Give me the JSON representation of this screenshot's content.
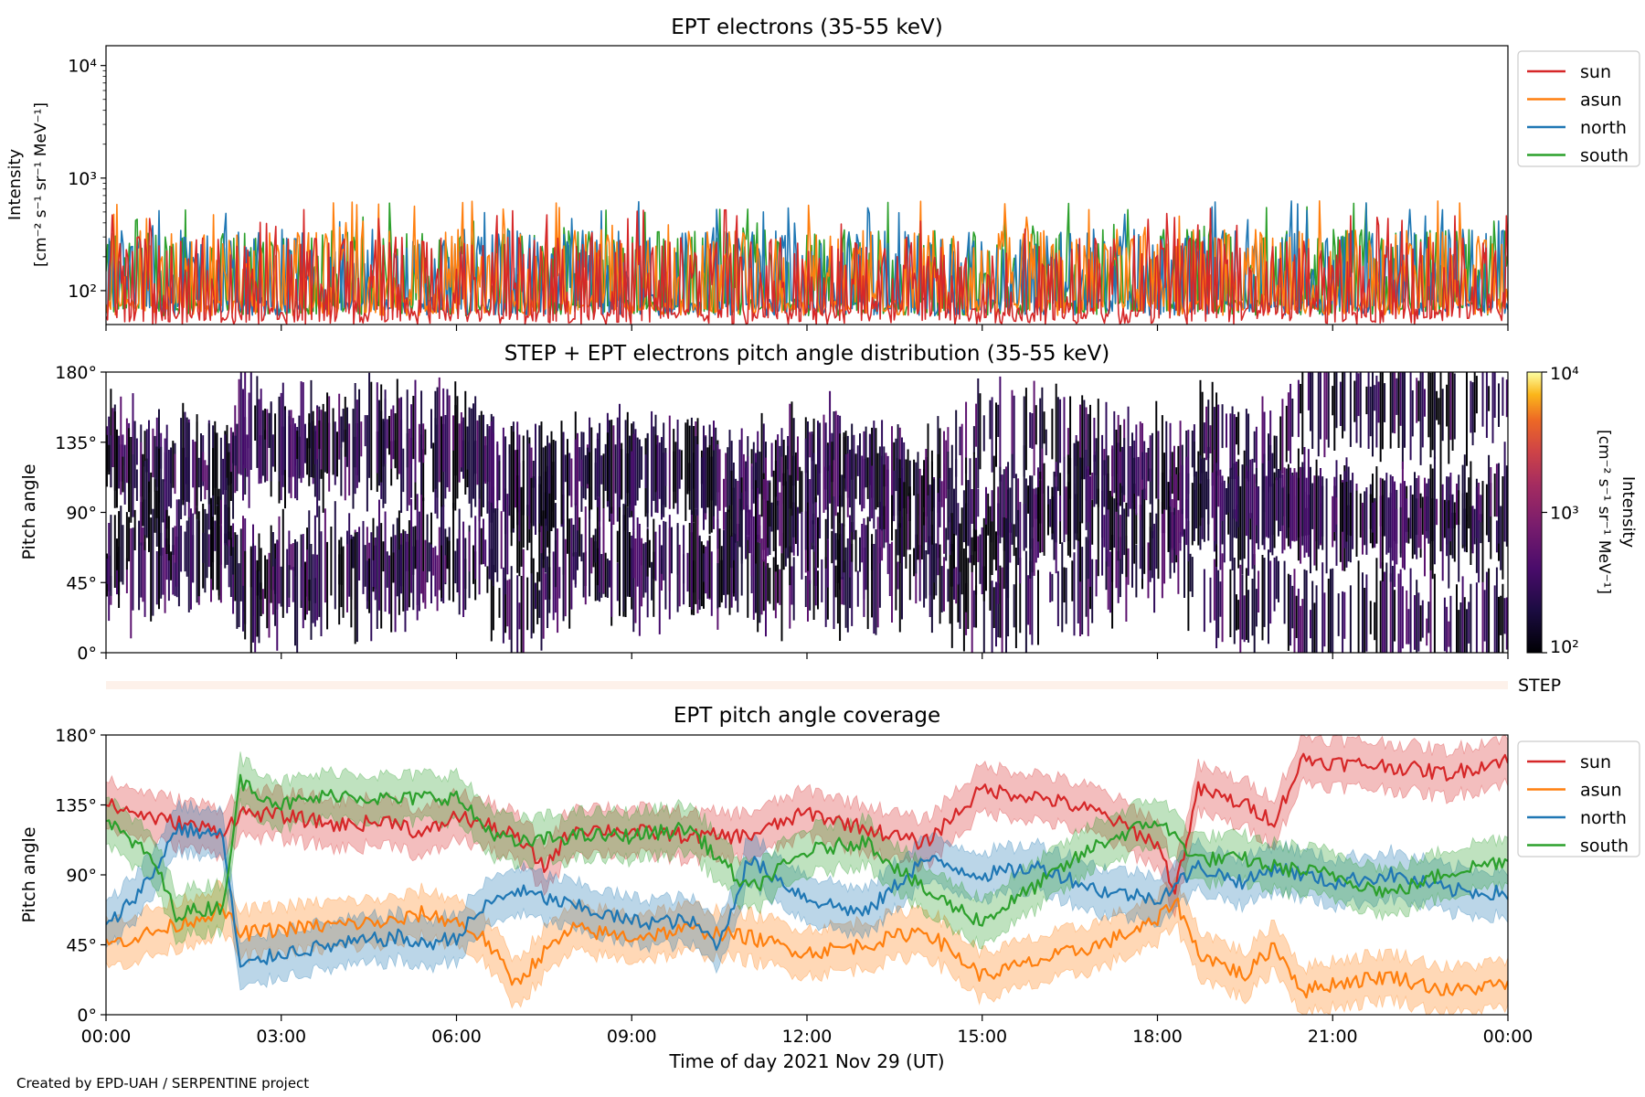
{
  "footer": {
    "credit": "Created by EPD-UAH / SERPENTINE project"
  },
  "x_axis": {
    "label": "Time of day 2021 Nov 29 (UT)",
    "ticks": [
      "00:00",
      "03:00",
      "06:00",
      "09:00",
      "12:00",
      "15:00",
      "18:00",
      "21:00",
      "00:00"
    ]
  },
  "colors": {
    "sun": "#d62728",
    "asun": "#ff7f0e",
    "north": "#1f77b4",
    "south": "#2ca02c",
    "step_band": "#fdf1ea"
  },
  "chart_data": [
    {
      "type": "line",
      "title": "EPT electrons (35-55 keV)",
      "ylabel": "Intensity",
      "yunit": "[cm⁻² s⁻¹ sr⁻¹ MeV⁻¹]",
      "yscale": "log",
      "ylim": [
        50,
        15000
      ],
      "yticks": [
        "10²",
        "10³",
        "10⁴"
      ],
      "xlim_hours": [
        0,
        24
      ],
      "legend": "outside-right",
      "series": [
        {
          "name": "sun",
          "typical_range": [
            50,
            300
          ],
          "peaks": [
            300
          ]
        },
        {
          "name": "asun",
          "typical_range": [
            60,
            350
          ],
          "peaks": [
            780
          ]
        },
        {
          "name": "north",
          "typical_range": [
            60,
            350
          ],
          "peaks": [
            600
          ]
        },
        {
          "name": "south",
          "typical_range": [
            60,
            350
          ],
          "peaks": [
            650
          ]
        }
      ]
    },
    {
      "type": "heatmap",
      "title": "STEP + EPT electrons pitch angle distribution (35-55 keV)",
      "ylabel": "Pitch angle",
      "ylim": [
        0,
        180
      ],
      "yticks": [
        "0°",
        "45°",
        "90°",
        "135°",
        "180°"
      ],
      "xlim_hours": [
        0,
        24
      ],
      "colorbar": {
        "label": "Intensity",
        "unit": "[cm⁻² s⁻¹ sr⁻¹ MeV⁻¹]",
        "scale": "log",
        "range": [
          100,
          10000
        ],
        "ticks": [
          "10²",
          "10³",
          "10⁴"
        ],
        "colormap": "inferno"
      },
      "step_label": "STEP"
    },
    {
      "type": "line",
      "title": "EPT pitch angle coverage",
      "ylabel": "Pitch angle",
      "ylim": [
        0,
        180
      ],
      "yticks": [
        "0°",
        "45°",
        "90°",
        "135°",
        "180°"
      ],
      "xlim_hours": [
        0,
        24
      ],
      "legend": "outside-right",
      "band_halfwidth_deg": 15,
      "series": [
        {
          "name": "sun",
          "points": [
            [
              0,
              135
            ],
            [
              1,
              125
            ],
            [
              2,
              118
            ],
            [
              2.3,
              130
            ],
            [
              3,
              128
            ],
            [
              4,
              122
            ],
            [
              5,
              125
            ],
            [
              5.4,
              115
            ],
            [
              6,
              128
            ],
            [
              6.5,
              122
            ],
            [
              7,
              115
            ],
            [
              7.5,
              95
            ],
            [
              8,
              120
            ],
            [
              9,
              118
            ],
            [
              10,
              115
            ],
            [
              11,
              115
            ],
            [
              12,
              130
            ],
            [
              13,
              120
            ],
            [
              14,
              110
            ],
            [
              15,
              145
            ],
            [
              16,
              140
            ],
            [
              17,
              130
            ],
            [
              18,
              110
            ],
            [
              18.3,
              80
            ],
            [
              18.7,
              145
            ],
            [
              19.5,
              135
            ],
            [
              20,
              125
            ],
            [
              20.5,
              165
            ],
            [
              21,
              162
            ],
            [
              22,
              160
            ],
            [
              23,
              155
            ],
            [
              24,
              165
            ]
          ]
        },
        {
          "name": "asun",
          "points": [
            [
              0,
              45
            ],
            [
              1,
              55
            ],
            [
              2,
              68
            ],
            [
              2.3,
              52
            ],
            [
              3,
              55
            ],
            [
              4,
              58
            ],
            [
              5,
              60
            ],
            [
              5.4,
              65
            ],
            [
              6,
              60
            ],
            [
              6.5,
              48
            ],
            [
              7,
              20
            ],
            [
              7.5,
              40
            ],
            [
              8,
              55
            ],
            [
              9,
              50
            ],
            [
              10,
              55
            ],
            [
              11,
              50
            ],
            [
              12,
              40
            ],
            [
              13,
              45
            ],
            [
              14,
              55
            ],
            [
              15,
              25
            ],
            [
              16,
              35
            ],
            [
              17,
              45
            ],
            [
              18,
              60
            ],
            [
              18.3,
              75
            ],
            [
              18.7,
              40
            ],
            [
              19.5,
              25
            ],
            [
              20,
              45
            ],
            [
              20.5,
              15
            ],
            [
              21,
              20
            ],
            [
              22,
              25
            ],
            [
              23,
              15
            ],
            [
              24,
              20
            ]
          ]
        },
        {
          "name": "north",
          "points": [
            [
              0,
              55
            ],
            [
              0.8,
              90
            ],
            [
              1.2,
              120
            ],
            [
              2,
              115
            ],
            [
              2.3,
              30
            ],
            [
              3,
              40
            ],
            [
              4,
              45
            ],
            [
              5,
              50
            ],
            [
              5.4,
              45
            ],
            [
              6,
              50
            ],
            [
              6.5,
              70
            ],
            [
              7,
              80
            ],
            [
              8,
              70
            ],
            [
              9,
              60
            ],
            [
              10,
              60
            ],
            [
              10.5,
              45
            ],
            [
              11,
              100
            ],
            [
              12,
              75
            ],
            [
              13,
              65
            ],
            [
              14,
              100
            ],
            [
              15,
              90
            ],
            [
              16,
              95
            ],
            [
              17,
              80
            ],
            [
              18,
              75
            ],
            [
              18.7,
              95
            ],
            [
              19.5,
              85
            ],
            [
              20,
              95
            ],
            [
              21,
              85
            ],
            [
              22,
              90
            ],
            [
              23,
              80
            ],
            [
              24,
              78
            ]
          ]
        },
        {
          "name": "south",
          "points": [
            [
              0,
              125
            ],
            [
              0.8,
              100
            ],
            [
              1.2,
              65
            ],
            [
              2,
              70
            ],
            [
              2.3,
              150
            ],
            [
              3,
              135
            ],
            [
              4,
              142
            ],
            [
              5,
              138
            ],
            [
              5.4,
              140
            ],
            [
              6,
              140
            ],
            [
              6.5,
              120
            ],
            [
              7,
              110
            ],
            [
              8,
              115
            ],
            [
              9,
              115
            ],
            [
              10,
              120
            ],
            [
              11,
              80
            ],
            [
              12,
              105
            ],
            [
              13,
              112
            ],
            [
              14,
              80
            ],
            [
              15,
              60
            ],
            [
              16,
              85
            ],
            [
              17,
              110
            ],
            [
              18,
              125
            ],
            [
              18.7,
              100
            ],
            [
              19.5,
              100
            ],
            [
              20,
              95
            ],
            [
              21,
              90
            ],
            [
              22,
              78
            ],
            [
              23,
              92
            ],
            [
              24,
              100
            ]
          ]
        }
      ]
    }
  ]
}
